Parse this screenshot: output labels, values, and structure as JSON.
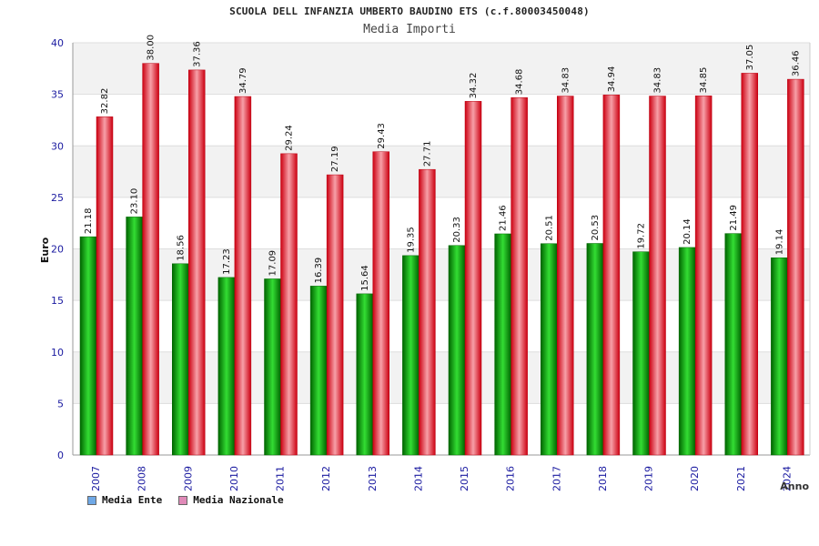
{
  "chart_data": {
    "type": "bar",
    "title": "SCUOLA DELL INFANZIA UMBERTO BAUDINO ETS (c.f.80003450048)",
    "subtitle": "Media Importi",
    "xlabel": "Anno",
    "ylabel": "Euro",
    "ylim": [
      0,
      40
    ],
    "yticks": [
      0,
      5,
      10,
      15,
      20,
      25,
      30,
      35,
      40
    ],
    "grid": true,
    "legend_position": "bottom-left",
    "categories": [
      "2007",
      "2008",
      "2009",
      "2010",
      "2011",
      "2012",
      "2013",
      "2014",
      "2015",
      "2016",
      "2017",
      "2018",
      "2019",
      "2020",
      "2021",
      "2024"
    ],
    "series": [
      {
        "name": "Media Ente",
        "color": "#00aa00",
        "values": [
          21.18,
          23.1,
          18.56,
          17.23,
          17.09,
          16.39,
          15.64,
          19.35,
          20.33,
          21.46,
          20.51,
          20.53,
          19.72,
          20.14,
          21.49,
          19.14
        ],
        "labels": [
          "21.18",
          "23.10",
          "18.56",
          "17.23",
          "17.09",
          "16.39",
          "15.64",
          "19.35",
          "20.33",
          "21.46",
          "20.51",
          "20.53",
          "19.72",
          "20.14",
          "21.49",
          "19.14"
        ]
      },
      {
        "name": "Media Nazionale",
        "color": "#ee1122",
        "values": [
          32.82,
          38.0,
          37.36,
          34.79,
          29.24,
          27.19,
          29.43,
          27.71,
          34.32,
          34.68,
          34.83,
          34.94,
          34.83,
          34.85,
          37.05,
          36.46
        ],
        "labels": [
          "32.82",
          "38.00",
          "37.36",
          "34.79",
          "29.24",
          "27.19",
          "29.43",
          "27.71",
          "34.32",
          "34.68",
          "34.83",
          "34.94",
          "34.83",
          "34.85",
          "37.05",
          "36.46"
        ]
      }
    ],
    "legend": [
      {
        "label": "Media Ente",
        "swatch_color": "#6fa8e6"
      },
      {
        "label": "Media Nazionale",
        "swatch_color": "#e08ab8"
      }
    ]
  }
}
